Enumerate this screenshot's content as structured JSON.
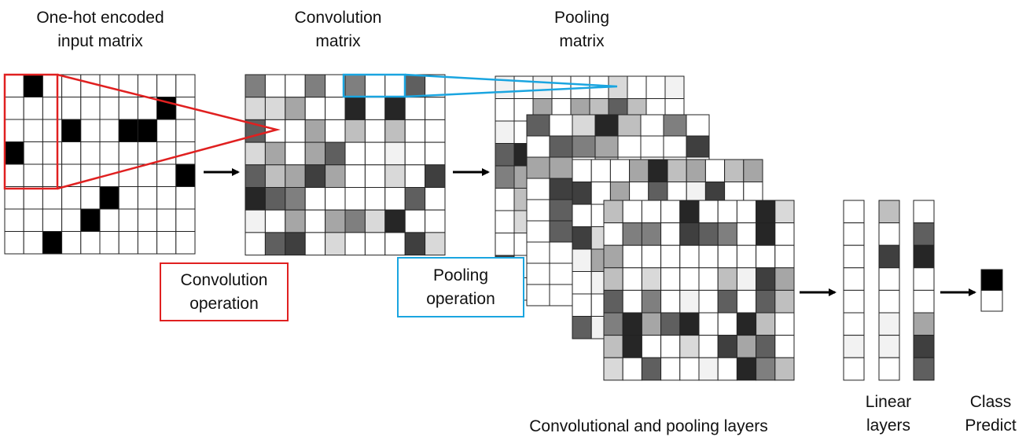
{
  "labels": {
    "input": "One-hot encoded\ninput matrix",
    "convolution_matrix": "Convolution\nmatrix",
    "pooling_matrix": "Pooling\nmatrix",
    "conv_operation": "Convolution\noperation",
    "pool_operation": "Pooling\noperation",
    "conv_pool_layers": "Convolutional and pooling layers",
    "linear_layers": "Linear\nlayers",
    "class_predict": "Class\nPredict"
  },
  "colors": {
    "convolution_highlight": "#e02020",
    "pooling_highlight": "#1aa5e0",
    "grid_line": "#222222",
    "cell_black": "#000000"
  },
  "input_matrix": {
    "rows": 8,
    "cols": 10,
    "ones": [
      [
        0,
        1
      ],
      [
        1,
        8
      ],
      [
        2,
        3
      ],
      [
        2,
        6
      ],
      [
        2,
        7
      ],
      [
        3,
        0
      ],
      [
        4,
        9
      ],
      [
        5,
        5
      ],
      [
        6,
        4
      ],
      [
        7,
        2
      ]
    ]
  },
  "shade_palette": [
    "#ffffff",
    "#f2f2f2",
    "#d9d9d9",
    "#bfbfbf",
    "#a6a6a6",
    "#7f7f7f",
    "#5f5f5f",
    "#3f3f3f",
    "#262626"
  ]
}
